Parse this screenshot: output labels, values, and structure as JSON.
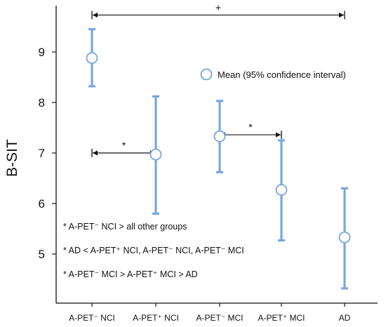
{
  "chart_data": {
    "type": "scatter",
    "ylabel": "B-SIT",
    "ylim": [
      4.2,
      9.9
    ],
    "yticks": [
      5,
      6,
      7,
      8,
      9
    ],
    "categories": [
      "A-PET⁻ NCI",
      "A-PET⁺ NCI",
      "A-PET⁻ MCI",
      "A-PET⁺ MCI",
      "AD"
    ],
    "series": [
      {
        "name": "Mean (95% confidence interval)",
        "mean": [
          8.88,
          6.97,
          7.33,
          6.27,
          5.33
        ],
        "lower": [
          8.32,
          5.8,
          6.62,
          5.27,
          4.32
        ],
        "upper": [
          9.45,
          8.12,
          8.03,
          7.25,
          6.3
        ]
      }
    ],
    "legend": {
      "label": "Mean (95% confidence interval)",
      "position": "top-right"
    },
    "brackets": [
      {
        "from": 0,
        "to": 4,
        "y": 9.73,
        "label": "+"
      },
      {
        "from": 0,
        "to": 1,
        "y": 7.0,
        "label": "*"
      },
      {
        "from": 2,
        "to": 3,
        "y": 7.36,
        "label": "*"
      }
    ],
    "annotations": [
      "* A-PET⁻ NCI  > all other groups",
      "* AD  < A-PET⁺ NCI, A-PET⁻ NCI, A-PET⁻ MCI",
      "* A-PET⁻ MCI > A-PET⁺ MCI > AD"
    ],
    "colors": {
      "errorbar": "#7aa6dc",
      "marker_edge": "#7aa6dc",
      "axis": "#111111"
    }
  }
}
